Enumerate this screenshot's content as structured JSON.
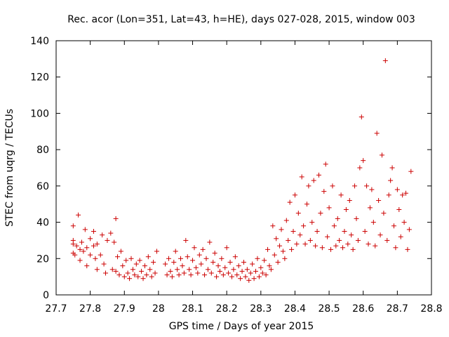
{
  "chart_data": {
    "type": "scatter",
    "title": "Rec. acor (Lon=351, Lat=43, h=HE), days 027-028, 2015, window 003",
    "xlabel": "GPS time / Days of year 2015",
    "ylabel": "STEC from uqrg / TECUs",
    "xlim": [
      27.7,
      28.8
    ],
    "ylim": [
      0,
      140
    ],
    "x_ticks": [
      "27.7",
      "27.8",
      "27.9",
      "28",
      "28.1",
      "28.2",
      "28.3",
      "28.4",
      "28.5",
      "28.6",
      "28.7",
      "28.8"
    ],
    "y_ticks": [
      "0",
      "20",
      "40",
      "60",
      "80",
      "100",
      "120",
      "140"
    ],
    "marker": "plus",
    "marker_color": "#cc0000",
    "series": [
      {
        "name": "STEC",
        "points": [
          [
            27.75,
            38
          ],
          [
            27.75,
            30
          ],
          [
            27.75,
            28
          ],
          [
            27.75,
            23
          ],
          [
            27.755,
            22
          ],
          [
            27.76,
            27
          ],
          [
            27.765,
            44
          ],
          [
            27.77,
            25
          ],
          [
            27.77,
            19
          ],
          [
            27.775,
            29
          ],
          [
            27.78,
            24
          ],
          [
            27.785,
            36
          ],
          [
            27.79,
            26
          ],
          [
            27.79,
            16
          ],
          [
            27.8,
            31
          ],
          [
            27.8,
            22
          ],
          [
            27.81,
            35
          ],
          [
            27.81,
            27
          ],
          [
            27.815,
            20
          ],
          [
            27.82,
            28
          ],
          [
            27.82,
            14
          ],
          [
            27.83,
            22
          ],
          [
            27.835,
            33
          ],
          [
            27.84,
            17
          ],
          [
            27.845,
            12
          ],
          [
            27.85,
            30
          ],
          [
            27.86,
            34
          ],
          [
            27.865,
            14
          ],
          [
            27.87,
            29
          ],
          [
            27.875,
            42
          ],
          [
            27.875,
            13
          ],
          [
            27.88,
            21
          ],
          [
            27.885,
            11
          ],
          [
            27.89,
            24
          ],
          [
            27.895,
            16
          ],
          [
            27.9,
            10
          ],
          [
            27.905,
            19
          ],
          [
            27.91,
            12
          ],
          [
            27.915,
            9
          ],
          [
            27.92,
            20
          ],
          [
            27.925,
            14
          ],
          [
            27.93,
            11
          ],
          [
            27.935,
            17
          ],
          [
            27.94,
            10
          ],
          [
            27.945,
            19
          ],
          [
            27.95,
            13
          ],
          [
            27.955,
            9
          ],
          [
            27.96,
            16
          ],
          [
            27.965,
            11
          ],
          [
            27.97,
            21
          ],
          [
            27.975,
            14
          ],
          [
            27.98,
            10
          ],
          [
            27.985,
            18
          ],
          [
            27.99,
            12
          ],
          [
            27.995,
            24
          ],
          [
            28.02,
            17
          ],
          [
            28.025,
            11
          ],
          [
            28.03,
            20
          ],
          [
            28.035,
            13
          ],
          [
            28.04,
            10
          ],
          [
            28.045,
            18
          ],
          [
            28.05,
            24
          ],
          [
            28.055,
            14
          ],
          [
            28.06,
            11
          ],
          [
            28.065,
            20
          ],
          [
            28.07,
            16
          ],
          [
            28.075,
            12
          ],
          [
            28.08,
            30
          ],
          [
            28.085,
            21
          ],
          [
            28.09,
            14
          ],
          [
            28.095,
            11
          ],
          [
            28.1,
            19
          ],
          [
            28.105,
            26
          ],
          [
            28.11,
            15
          ],
          [
            28.115,
            12
          ],
          [
            28.12,
            22
          ],
          [
            28.125,
            17
          ],
          [
            28.13,
            25
          ],
          [
            28.135,
            11
          ],
          [
            28.14,
            20
          ],
          [
            28.145,
            14
          ],
          [
            28.15,
            29
          ],
          [
            28.155,
            12
          ],
          [
            28.16,
            18
          ],
          [
            28.165,
            23
          ],
          [
            28.17,
            10
          ],
          [
            28.175,
            16
          ],
          [
            28.18,
            13
          ],
          [
            28.185,
            20
          ],
          [
            28.19,
            11
          ],
          [
            28.195,
            15
          ],
          [
            28.2,
            26
          ],
          [
            28.205,
            12
          ],
          [
            28.21,
            18
          ],
          [
            28.215,
            10
          ],
          [
            28.22,
            14
          ],
          [
            28.225,
            21
          ],
          [
            28.23,
            11
          ],
          [
            28.235,
            16
          ],
          [
            28.24,
            9
          ],
          [
            28.245,
            13
          ],
          [
            28.25,
            18
          ],
          [
            28.255,
            10
          ],
          [
            28.26,
            14
          ],
          [
            28.265,
            8
          ],
          [
            28.27,
            12
          ],
          [
            28.275,
            17
          ],
          [
            28.28,
            9
          ],
          [
            28.285,
            13
          ],
          [
            28.29,
            20
          ],
          [
            28.295,
            10
          ],
          [
            28.3,
            15
          ],
          [
            28.305,
            12
          ],
          [
            28.31,
            19
          ],
          [
            28.315,
            11
          ],
          [
            28.32,
            25
          ],
          [
            28.325,
            16
          ],
          [
            28.33,
            14
          ],
          [
            28.335,
            38
          ],
          [
            28.34,
            22
          ],
          [
            28.345,
            31
          ],
          [
            28.35,
            18
          ],
          [
            28.355,
            27
          ],
          [
            28.36,
            36
          ],
          [
            28.365,
            24
          ],
          [
            28.37,
            20
          ],
          [
            28.375,
            41
          ],
          [
            28.38,
            30
          ],
          [
            28.385,
            51
          ],
          [
            28.39,
            25
          ],
          [
            28.395,
            35
          ],
          [
            28.4,
            55
          ],
          [
            28.405,
            28
          ],
          [
            28.41,
            45
          ],
          [
            28.415,
            33
          ],
          [
            28.42,
            65
          ],
          [
            28.425,
            38
          ],
          [
            28.43,
            28
          ],
          [
            28.435,
            50
          ],
          [
            28.44,
            60
          ],
          [
            28.445,
            30
          ],
          [
            28.45,
            40
          ],
          [
            28.455,
            63
          ],
          [
            28.46,
            27
          ],
          [
            28.465,
            35
          ],
          [
            28.47,
            66
          ],
          [
            28.475,
            45
          ],
          [
            28.48,
            26
          ],
          [
            28.485,
            57
          ],
          [
            28.49,
            72
          ],
          [
            28.495,
            32
          ],
          [
            28.5,
            48
          ],
          [
            28.505,
            25
          ],
          [
            28.51,
            60
          ],
          [
            28.515,
            38
          ],
          [
            28.52,
            27
          ],
          [
            28.525,
            42
          ],
          [
            28.53,
            30
          ],
          [
            28.535,
            55
          ],
          [
            28.54,
            26
          ],
          [
            28.545,
            35
          ],
          [
            28.55,
            47
          ],
          [
            28.555,
            28
          ],
          [
            28.56,
            52
          ],
          [
            28.565,
            33
          ],
          [
            28.57,
            25
          ],
          [
            28.575,
            60
          ],
          [
            28.58,
            42
          ],
          [
            28.585,
            30
          ],
          [
            28.59,
            70
          ],
          [
            28.595,
            98
          ],
          [
            28.6,
            74
          ],
          [
            28.605,
            35
          ],
          [
            28.61,
            60
          ],
          [
            28.615,
            28
          ],
          [
            28.62,
            48
          ],
          [
            28.625,
            58
          ],
          [
            28.63,
            40
          ],
          [
            28.635,
            27
          ],
          [
            28.64,
            89
          ],
          [
            28.645,
            52
          ],
          [
            28.65,
            33
          ],
          [
            28.655,
            77
          ],
          [
            28.66,
            45
          ],
          [
            28.665,
            129
          ],
          [
            28.67,
            30
          ],
          [
            28.675,
            55
          ],
          [
            28.68,
            63
          ],
          [
            28.685,
            70
          ],
          [
            28.69,
            38
          ],
          [
            28.695,
            26
          ],
          [
            28.7,
            58
          ],
          [
            28.705,
            47
          ],
          [
            28.71,
            32
          ],
          [
            28.715,
            55
          ],
          [
            28.72,
            40
          ],
          [
            28.725,
            56
          ],
          [
            28.73,
            25
          ],
          [
            28.735,
            36
          ],
          [
            28.74,
            68
          ]
        ]
      }
    ]
  }
}
